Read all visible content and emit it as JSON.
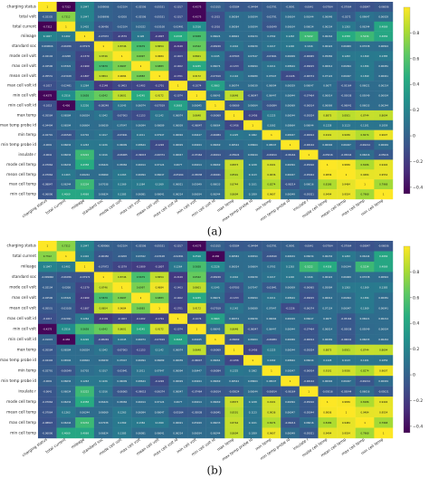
{
  "panels": [
    {
      "label": "(a)",
      "chart_data": {
        "type": "heatmap",
        "row_labels": [
          "charging status",
          "total volt",
          "total current",
          "mileage",
          "standard soc",
          "mode cell volt",
          "max cell volt",
          "mean cell volt",
          "max cell volt id",
          "min cell volt",
          "min cell volt id",
          "max temp",
          "max temp probe id",
          "min temp",
          "min temp probe id",
          "insulate r",
          "mode cell temp",
          "mean cell temp",
          "max cell temp",
          "min cell temp"
        ],
        "col_labels": [
          "charging status",
          "total current",
          "mileage",
          "standard soc",
          "mode cell volt",
          "max cell volt",
          "mean cell volt",
          "max cell volt id",
          "min cell volt",
          "min cell volt id",
          "max temp",
          "max temp probe id",
          "min temp",
          "min temp probe id",
          "insulate r",
          "mode cell temp",
          "mean cell temp",
          "max cell temp",
          "min cell temp"
        ],
        "colorbar_ticks": [
          "0.8",
          "0.6",
          "0.4",
          "0.2",
          "0",
          "−0.2",
          "−0.4"
        ],
        "colorbar_range": [
          -0.45,
          1.0
        ],
        "values": [
          [
            1,
            -0.7312,
            0.1947,
            0.009066,
            -0.02104,
            -0.02506,
            -0.05531,
            -0.1017,
            -0.4275,
            -0.01015,
            -0.05584,
            -0.04494,
            -0.02791,
            -0.0091,
            -0.0641,
            -0.07064,
            -0.07064,
            -0.08847,
            -0.06006
          ],
          [
            -0.02335,
            0.7312,
            0.1947,
            0.006996,
            -0.0208,
            -0.02506,
            -0.05531,
            -0.1017,
            -0.4275,
            -0.1015,
            0.06584,
            0.06594,
            -0.02791,
            0.06634,
            0.06344,
            0.06048,
            -0.0272,
            0.09647,
            0.06029
          ],
          [
            -0.7312,
            1,
            0.1402,
            -0.06456,
            -0.02104,
            0.03322,
            -0.03108,
            -0.02491,
            0.2516,
            -0.1016,
            0.06584,
            0.06594,
            -0.06549,
            0.06634,
            0.06034,
            0.06234,
            0.1263,
            0.06244,
            0.4069
          ],
          [
            0.1947,
            0.1402,
            1,
            -0.07972,
            -0.1579,
            0.126,
            -0.1807,
            0.4345,
            0.5658,
            0.06624,
            0.06604,
            0.06234,
            0.0702,
            0.1263,
            0.5222,
            0.06244,
            0.4358,
            0.5234,
            0.4069
          ],
          [
            0.009066,
            -0.06456,
            -0.07972,
            1,
            0.8746,
            0.5679,
            0.8654,
            -0.2149,
            0.6542,
            -0.08249,
            0.1042,
            0.06039,
            0.1017,
            0.1226,
            0.1016,
            0.06424,
            0.06069,
            0.07038,
            0.06824
          ],
          [
            -0.02104,
            -0.0208,
            -0.1579,
            0.8746,
            1,
            0.6997,
            0.9684,
            -0.1403,
            0.8601,
            0.1045,
            -0.07003,
            0.07047,
            -0.03941,
            0.06009,
            -0.06065,
            0.05084,
            0.1263,
            0.1369,
            0.1385
          ],
          [
            -0.02506,
            0.03322,
            -0.1909,
            0.5679,
            0.6997,
            1,
            0.6883,
            -0.1402,
            0.4245,
            0.06074,
            -0.1153,
            0.06094,
            0.1011,
            0.08644,
            -0.09015,
            0.06014,
            0.06094,
            0.1384,
            0.06081
          ],
          [
            -0.05531,
            -0.03108,
            -0.1807,
            0.8654,
            0.9684,
            0.6883,
            1,
            -0.1701,
            0.9172,
            -0.07019,
            0.1142,
            0.06089,
            0.07947,
            -0.1226,
            -0.06374,
            0.07124,
            0.06047,
            0.1369,
            0.06041
          ],
          [
            -0.1017,
            -0.02491,
            0.1264,
            -0.2149,
            -0.1403,
            -0.1402,
            -0.1701,
            1,
            -0.1074,
            0.3663,
            0.06074,
            0.06039,
            0.06094,
            0.06029,
            0.06047,
            0.0677,
            -0.05164,
            0.06021,
            0.06214
          ],
          [
            -0.4275,
            0.2516,
            0.5658,
            0.6542,
            0.8601,
            0.4245,
            0.9172,
            -0.1074,
            1,
            0.06045,
            0.8648,
            -0.06047,
            0.06447,
            0.06944,
            -0.07464,
            0.06014,
            -0.05038,
            0.05049,
            0.06034
          ],
          [
            -0.1015,
            -0.436,
            0.2226,
            -0.08249,
            0.1045,
            0.06074,
            -0.07019,
            0.3663,
            0.06045,
            1,
            -0.06069,
            0.06064,
            -0.06084,
            0.06069,
            -0.06014,
            0.06069,
            -0.06041,
            0.06033,
            0.06244
          ],
          [
            -0.05584,
            0.06584,
            0.06024,
            0.1042,
            -0.07003,
            -0.1153,
            0.1142,
            0.06074,
            0.8648,
            -0.06069,
            1,
            -0.1456,
            0.1225,
            0.06544,
            -0.05024,
            0.8873,
            0.8501,
            0.8744,
            0.8694
          ],
          [
            -0.04494,
            0.06594,
            0.06604,
            0.06039,
            0.07047,
            0.06094,
            0.06089,
            0.06039,
            -0.06047,
            0.06064,
            -0.1456,
            1,
            0.1062,
            0.08664,
            0.06044,
            0.1228,
            0.1123,
            0.1101,
            0.1059
          ],
          [
            -0.02791,
            -0.06549,
            0.0702,
            0.1017,
            -0.03941,
            0.1011,
            0.07947,
            0.06094,
            0.06447,
            -0.06084,
            0.1225,
            0.1062,
            1,
            0.08047,
            -0.06914,
            0.9101,
            0.9036,
            0.8274,
            0.9607
          ],
          [
            -0.0091,
            0.06634,
            0.1263,
            0.1226,
            0.06009,
            0.08644,
            -0.1226,
            0.06029,
            0.06944,
            0.06069,
            0.06544,
            0.08664,
            0.08047,
            1,
            -0.06164,
            0.06094,
            0.06047,
            -0.06214,
            0.06049
          ],
          [
            -0.0641,
            0.06034,
            0.5222,
            0.1016,
            -0.06065,
            -0.09015,
            -0.06374,
            0.06047,
            -0.07464,
            -0.06014,
            -0.05024,
            0.06044,
            -0.06914,
            -0.06164,
            1,
            -0.05016,
            -0.05044,
            0.06016,
            -0.05021
          ],
          [
            -0.07064,
            0.06234,
            0.4358,
            0.06424,
            0.05084,
            0.06014,
            0.07124,
            0.0677,
            0.06014,
            0.06069,
            0.8873,
            0.1228,
            0.9101,
            0.06094,
            -0.05016,
            1,
            0.9836,
            0.8186,
            0.9494
          ],
          [
            -0.07064,
            0.1263,
            0.06244,
            0.06069,
            0.1263,
            0.06094,
            0.06047,
            -0.05164,
            -0.05038,
            -0.06041,
            0.8501,
            0.1123,
            0.9036,
            0.06047,
            -0.05044,
            0.9836,
            1,
            0.9484,
            0.9554
          ],
          [
            -0.08847,
            0.06244,
            0.5234,
            0.07038,
            0.1369,
            0.1384,
            0.1369,
            0.06021,
            0.05049,
            0.06033,
            0.8744,
            0.1101,
            0.8274,
            -0.06214,
            0.06016,
            0.8186,
            0.9484,
            1,
            0.7968
          ],
          [
            -0.06006,
            0.4069,
            0.4069,
            0.06824,
            0.1385,
            0.06081,
            0.06041,
            0.06214,
            0.06034,
            0.06244,
            0.8694,
            0.1059,
            0.9607,
            0.06049,
            -0.05021,
            0.9494,
            0.9554,
            0.7968,
            1
          ]
        ]
      }
    },
    {
      "label": "(b)",
      "chart_data": {
        "type": "heatmap",
        "row_labels": [
          "charging status",
          "total current",
          "mileage",
          "standard soc",
          "mode cell volt",
          "max cell volt",
          "mean cell volt",
          "max cell volt id",
          "min cell volt",
          "min cell volt id",
          "max temp",
          "max temp probe id",
          "min temp",
          "min temp probe id",
          "insulate r",
          "mode cell temp",
          "mean cell temp",
          "max cell temp",
          "min cell temp"
        ],
        "col_labels": [
          "charging status",
          "total current",
          "mileage",
          "standard soc",
          "mode cell volt",
          "max cell volt",
          "mean cell volt",
          "max cell volt id",
          "min cell volt",
          "min cell volt id",
          "max temp",
          "max temp probe id",
          "min temp",
          "min temp probe id",
          "insulate r",
          "mode cell temp",
          "mean cell temp",
          "max cell temp",
          "min cell temp"
        ],
        "colorbar_ticks": [
          "0.8",
          "0.6",
          "0.4",
          "0.2",
          "0",
          "−0.2",
          "−0.4"
        ],
        "colorbar_range": [
          -0.45,
          1.0
        ],
        "values": [
          [
            1,
            0.7312,
            0.1947,
            -0.009066,
            -0.02104,
            -0.02506,
            -0.05531,
            -0.1017,
            -0.4275,
            -0.01015,
            -0.05584,
            -0.04494,
            -0.02791,
            -0.0091,
            -0.0641,
            -0.07064,
            -0.07064,
            -0.08847,
            -0.06006
          ],
          [
            0.7312,
            1,
            0.1402,
            -0.06456,
            -0.0208,
            0.03322,
            -0.03108,
            -0.02491,
            0.2516,
            -0.436,
            0.06584,
            0.06594,
            -0.06549,
            0.06634,
            0.06034,
            0.06234,
            0.1263,
            0.06244,
            0.4069
          ],
          [
            0.1947,
            0.1402,
            1,
            -0.07972,
            -0.1579,
            -0.1909,
            -0.1807,
            0.1264,
            0.5658,
            0.2226,
            0.06024,
            0.06604,
            0.0702,
            0.1263,
            0.5222,
            0.4358,
            0.06244,
            0.5234,
            0.4069
          ],
          [
            -0.009066,
            -0.06456,
            -0.07972,
            1,
            0.8746,
            0.5679,
            0.8654,
            -0.2149,
            0.6542,
            -0.08249,
            0.1042,
            0.06039,
            0.1017,
            0.1226,
            0.1016,
            0.06424,
            0.06069,
            0.07038,
            0.06824
          ],
          [
            -0.02104,
            -0.0208,
            -0.1579,
            0.8746,
            1,
            0.6997,
            0.9684,
            -0.1403,
            0.8601,
            0.1045,
            -0.07003,
            0.07047,
            -0.03941,
            0.06009,
            -0.06065,
            0.05084,
            0.1263,
            0.1369,
            0.1385
          ],
          [
            -0.02506,
            0.03322,
            -0.1909,
            0.5679,
            0.6997,
            1,
            0.6883,
            -0.1402,
            0.4245,
            0.06074,
            -0.1153,
            0.06094,
            0.1011,
            0.08644,
            -0.09015,
            0.06014,
            0.06094,
            0.1384,
            0.06081
          ],
          [
            -0.05531,
            -0.03108,
            -0.1807,
            0.8654,
            0.9684,
            0.6883,
            1,
            -0.1701,
            0.9172,
            -0.07019,
            0.1142,
            0.06089,
            0.07947,
            -0.1226,
            -0.06374,
            0.07124,
            0.06047,
            0.1369,
            0.06041
          ],
          [
            -0.1017,
            -0.02491,
            0.1264,
            -0.2149,
            -0.1403,
            -0.1402,
            -0.1701,
            1,
            -0.1074,
            0.3663,
            0.06074,
            0.06039,
            0.06094,
            0.06029,
            0.06047,
            0.0677,
            -0.05164,
            0.06021,
            0.06214
          ],
          [
            -0.4275,
            0.2516,
            0.5658,
            0.6542,
            0.8601,
            0.4245,
            0.9172,
            -0.1074,
            1,
            0.06045,
            0.8648,
            -0.06047,
            0.06447,
            0.06944,
            -0.07464,
            0.06014,
            -0.05038,
            0.05049,
            0.06034
          ],
          [
            -0.01015,
            -0.436,
            0.2226,
            -0.08249,
            0.1045,
            0.06074,
            -0.07019,
            0.3663,
            0.06045,
            1,
            -0.06069,
            0.06064,
            -0.06084,
            0.06069,
            -0.06014,
            0.06069,
            -0.06041,
            0.06033,
            0.06244
          ],
          [
            -0.05584,
            0.06584,
            0.06024,
            0.1042,
            -0.07003,
            -0.1153,
            0.1142,
            0.06074,
            0.8648,
            -0.06069,
            1,
            -0.1456,
            0.1225,
            0.06544,
            -0.05024,
            0.8873,
            0.8501,
            0.8744,
            0.8694
          ],
          [
            -0.04494,
            0.06594,
            0.06604,
            0.06039,
            0.07047,
            0.06094,
            0.06089,
            0.06039,
            -0.06047,
            0.06064,
            -0.1456,
            1,
            0.1062,
            0.08664,
            0.06044,
            0.1228,
            0.1123,
            0.1101,
            0.1059
          ],
          [
            -0.02791,
            -0.06549,
            0.0702,
            0.1017,
            -0.03941,
            0.1011,
            0.07947,
            0.06094,
            0.06447,
            -0.06084,
            0.1225,
            0.1062,
            1,
            0.08047,
            -0.06914,
            0.9101,
            0.9036,
            0.8274,
            0.9607
          ],
          [
            -0.0091,
            0.06634,
            0.1263,
            0.1226,
            0.06009,
            0.08644,
            -0.1226,
            0.06029,
            0.06944,
            0.06069,
            0.06544,
            0.08664,
            0.08047,
            1,
            -0.06164,
            0.06094,
            0.06047,
            -0.06214,
            0.06049
          ],
          [
            -0.0641,
            0.06034,
            0.5222,
            0.1016,
            -0.06065,
            -0.09015,
            -0.06374,
            0.06047,
            -0.07464,
            -0.06014,
            -0.05024,
            0.06044,
            -0.06914,
            -0.06164,
            1,
            -0.05016,
            -0.05044,
            0.06016,
            -0.05021
          ],
          [
            -0.07064,
            0.06234,
            0.4358,
            0.06424,
            0.05084,
            0.06014,
            0.07124,
            0.0677,
            0.06014,
            0.06069,
            0.8873,
            0.1228,
            0.9101,
            0.06094,
            -0.05016,
            1,
            0.9836,
            0.8186,
            0.9494
          ],
          [
            -0.07064,
            0.1263,
            0.06244,
            0.06069,
            0.1263,
            0.06094,
            0.06047,
            -0.05164,
            -0.05038,
            -0.06041,
            0.8501,
            0.1123,
            0.9036,
            0.06047,
            -0.05044,
            0.9836,
            1,
            0.9484,
            0.9554
          ],
          [
            -0.08847,
            0.06244,
            0.5234,
            0.07038,
            0.1369,
            0.1384,
            0.1369,
            0.06021,
            0.05049,
            0.06033,
            0.8744,
            0.1101,
            0.8274,
            -0.06214,
            0.06016,
            0.8186,
            0.9484,
            1,
            0.7968
          ],
          [
            -0.06006,
            0.4069,
            0.4069,
            0.06824,
            0.1385,
            0.06081,
            0.06041,
            0.06214,
            0.06034,
            0.06244,
            0.8694,
            0.1059,
            0.9607,
            0.06049,
            -0.05021,
            0.9494,
            0.9554,
            0.7968,
            1
          ]
        ]
      }
    }
  ],
  "colors": {
    "viridis_stops": [
      "#440154",
      "#472d7b",
      "#3b528b",
      "#2c728e",
      "#21918c",
      "#28ae80",
      "#5ec962",
      "#addc30",
      "#fde725"
    ]
  }
}
